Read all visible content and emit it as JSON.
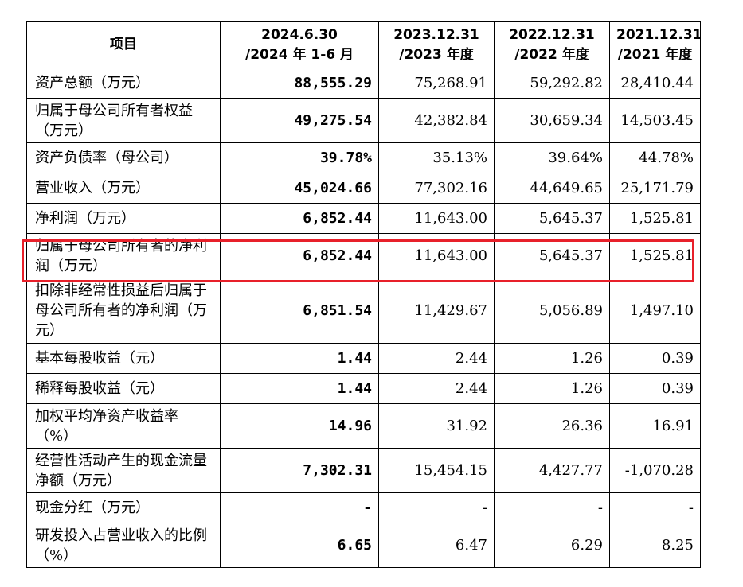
{
  "table": {
    "headers": [
      [
        "项目"
      ],
      [
        "2024.6.30",
        "/2024 年 1-6 月"
      ],
      [
        "2023.12.31",
        "/2023 年度"
      ],
      [
        "2022.12.31",
        "/2022 年度"
      ],
      [
        "2021.12.31",
        "/2021 年度"
      ]
    ],
    "rows": [
      {
        "label": "资产总额（万元）",
        "values": [
          "88,555.29",
          "75,268.91",
          "59,292.82",
          "28,410.44"
        ]
      },
      {
        "label": "归属于母公司所有者权益（万元）",
        "values": [
          "49,275.54",
          "42,382.84",
          "30,659.34",
          "14,503.45"
        ]
      },
      {
        "label": "资产负债率（母公司）",
        "values": [
          "39.78%",
          "35.13%",
          "39.64%",
          "44.78%"
        ]
      },
      {
        "label": "营业收入（万元）",
        "values": [
          "45,024.66",
          "77,302.16",
          "44,649.65",
          "25,171.79"
        ]
      },
      {
        "label": "净利润（万元）",
        "values": [
          "6,852.44",
          "11,643.00",
          "5,645.37",
          "1,525.81"
        ]
      },
      {
        "label": "归属于母公司所有者的净利润（万元）",
        "values": [
          "6,852.44",
          "11,643.00",
          "5,645.37",
          "1,525.81"
        ]
      },
      {
        "label": "扣除非经常性损益后归属于母公司所有者的净利润（万元）",
        "values": [
          "6,851.54",
          "11,429.67",
          "5,056.89",
          "1,497.10"
        ]
      },
      {
        "label": "基本每股收益（元）",
        "values": [
          "1.44",
          "2.44",
          "1.26",
          "0.39"
        ]
      },
      {
        "label": "稀释每股收益（元）",
        "values": [
          "1.44",
          "2.44",
          "1.26",
          "0.39"
        ]
      },
      {
        "label": "加权平均净资产收益率（%）",
        "values": [
          "14.96",
          "31.92",
          "26.36",
          "16.91"
        ]
      },
      {
        "label": "经营性活动产生的现金流量净额（万元）",
        "values": [
          "7,302.31",
          "15,454.15",
          "4,427.77",
          "-1,070.28"
        ]
      },
      {
        "label": "现金分红（万元）",
        "values": [
          "-",
          "-",
          "-",
          "-"
        ]
      },
      {
        "label": "研发投入占营业收入的比例（%）",
        "values": [
          "6.65",
          "6.47",
          "6.29",
          "8.25"
        ]
      }
    ]
  },
  "highlight": {
    "row": "归属于母公司所有者的净利润（万元）",
    "color": "#e8202a"
  }
}
